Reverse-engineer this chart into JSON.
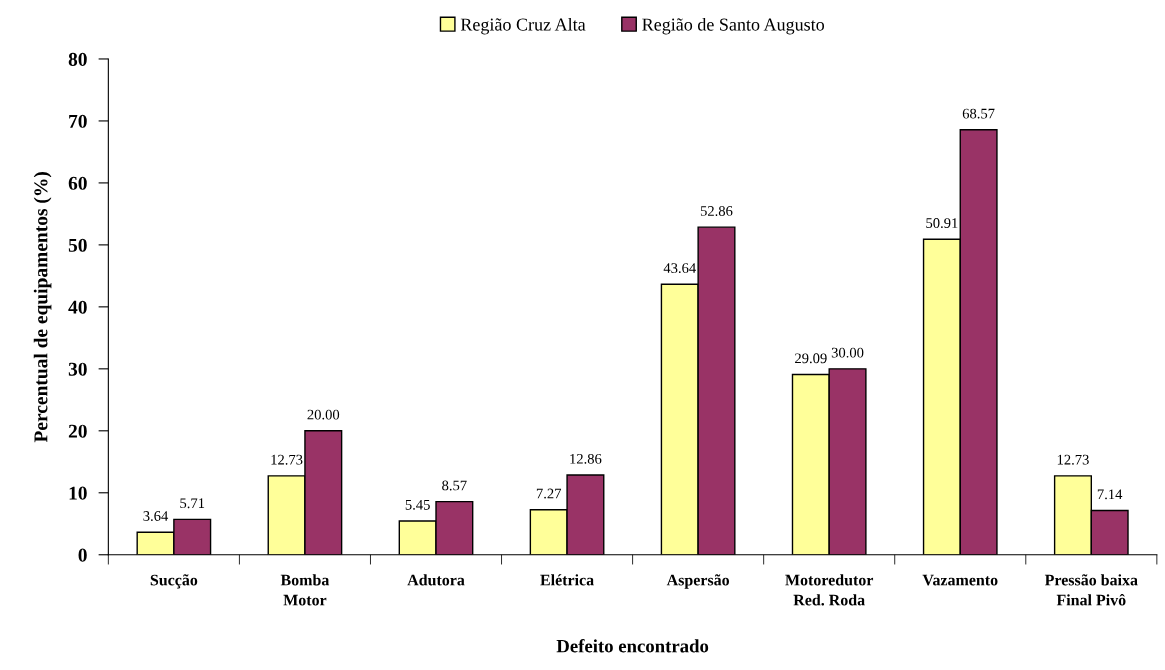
{
  "chart_data": {
    "type": "bar",
    "xlabel": "Defeito encontrado",
    "ylabel": "Percentual de equipamentos (%)",
    "categories": [
      "Sucção",
      "Bomba\nMotor",
      "Adutora",
      "Elétrica",
      "Aspersão",
      "Motoredutor\nRed. Roda",
      "Vazamento",
      "Pressão baixa\nFinal Pivô"
    ],
    "series": [
      {
        "name": "Região Cruz Alta",
        "color": "#ffff99",
        "values": [
          3.64,
          12.73,
          5.45,
          7.27,
          43.64,
          29.09,
          50.91,
          12.73
        ],
        "value_labels": [
          "3.64",
          "12.73",
          "5.45",
          "7.27",
          "43.64",
          "29.09",
          "50.91",
          "12.73"
        ]
      },
      {
        "name": "Região de Santo Augusto",
        "color": "#993366",
        "values": [
          5.71,
          20.0,
          8.57,
          12.86,
          52.86,
          30.0,
          68.57,
          7.14
        ],
        "value_labels": [
          "5.71",
          "20.00",
          "8.57",
          "12.86",
          "52.86",
          "30.00",
          "68.57",
          "7.14"
        ]
      }
    ],
    "ylim": [
      0,
      80
    ],
    "yticks": [
      0,
      10,
      20,
      30,
      40,
      50,
      60,
      70,
      80
    ],
    "grid": false,
    "legend": "top"
  }
}
